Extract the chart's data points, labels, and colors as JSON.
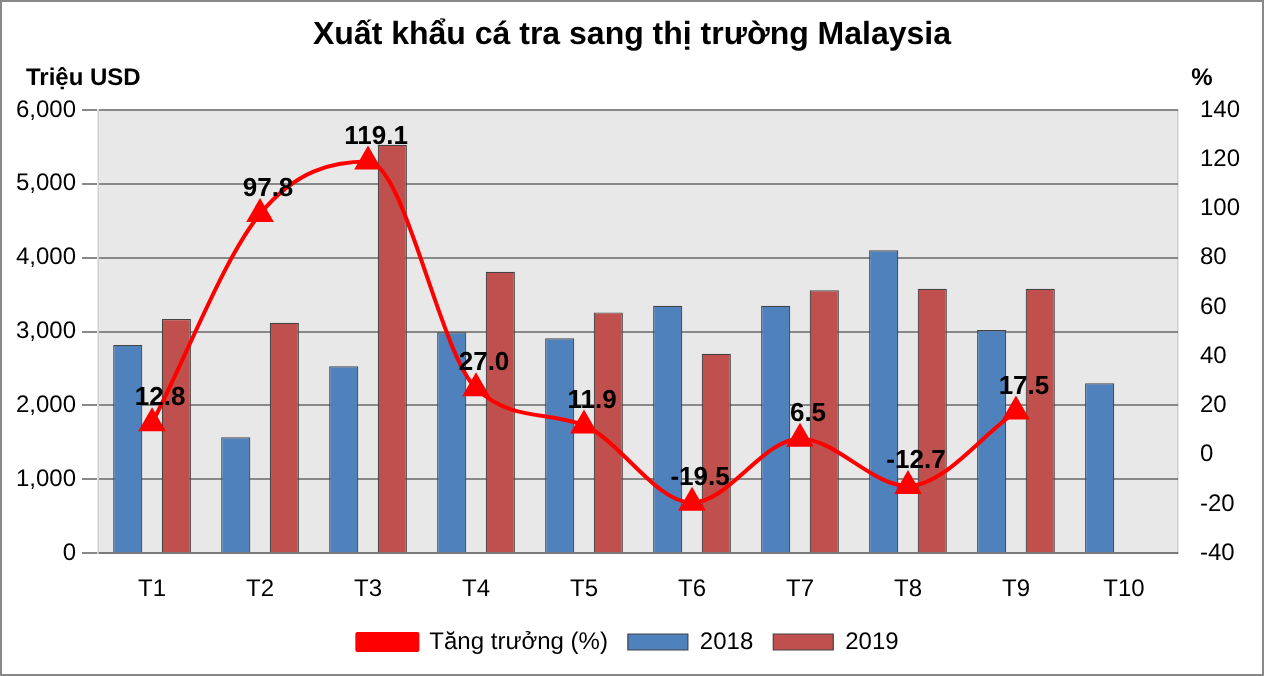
{
  "chart_data": {
    "type": "bar",
    "title": "Xuất khẩu cá tra sang thị trường Malaysia",
    "ylabel": "Triệu USD",
    "y2label": "%",
    "categories": [
      "T1",
      "T2",
      "T3",
      "T4",
      "T5",
      "T6",
      "T7",
      "T8",
      "T9",
      "T10"
    ],
    "series": [
      {
        "name": "2018",
        "color": "#4f81bd",
        "values": [
          2820,
          1570,
          2530,
          2990,
          2910,
          3350,
          3350,
          4100,
          3020,
          2300
        ]
      },
      {
        "name": "2019",
        "color": "#c0504d",
        "values": [
          3170,
          3120,
          5530,
          3810,
          3260,
          2700,
          3560,
          3580,
          3580,
          null
        ]
      },
      {
        "name": "Tăng trưởng (%)",
        "type": "line",
        "axis": "y2",
        "color": "#ff0000",
        "marker": "triangle",
        "values": [
          12.8,
          97.8,
          119.1,
          27.0,
          11.9,
          -19.5,
          6.5,
          -12.7,
          17.5,
          null
        ],
        "value_labels": [
          "12.8",
          "97.8",
          "119.1",
          "27.0",
          "11.9",
          "-19.5",
          "6.5",
          "-12.7",
          "17.5",
          null
        ]
      }
    ],
    "ylim": [
      0,
      6000
    ],
    "yticks": [
      {
        "value": 0,
        "label": "0"
      },
      {
        "value": 1000,
        "label": "1,000"
      },
      {
        "value": 2000,
        "label": "2,000"
      },
      {
        "value": 3000,
        "label": "3,000"
      },
      {
        "value": 4000,
        "label": "4,000"
      },
      {
        "value": 5000,
        "label": "5,000"
      },
      {
        "value": 6000,
        "label": "6,000"
      }
    ],
    "y2lim": [
      -40,
      140
    ],
    "y2ticks": [
      -40,
      -20,
      0,
      20,
      40,
      60,
      80,
      100,
      120,
      140
    ],
    "grid": "y",
    "legend": "bottom"
  }
}
